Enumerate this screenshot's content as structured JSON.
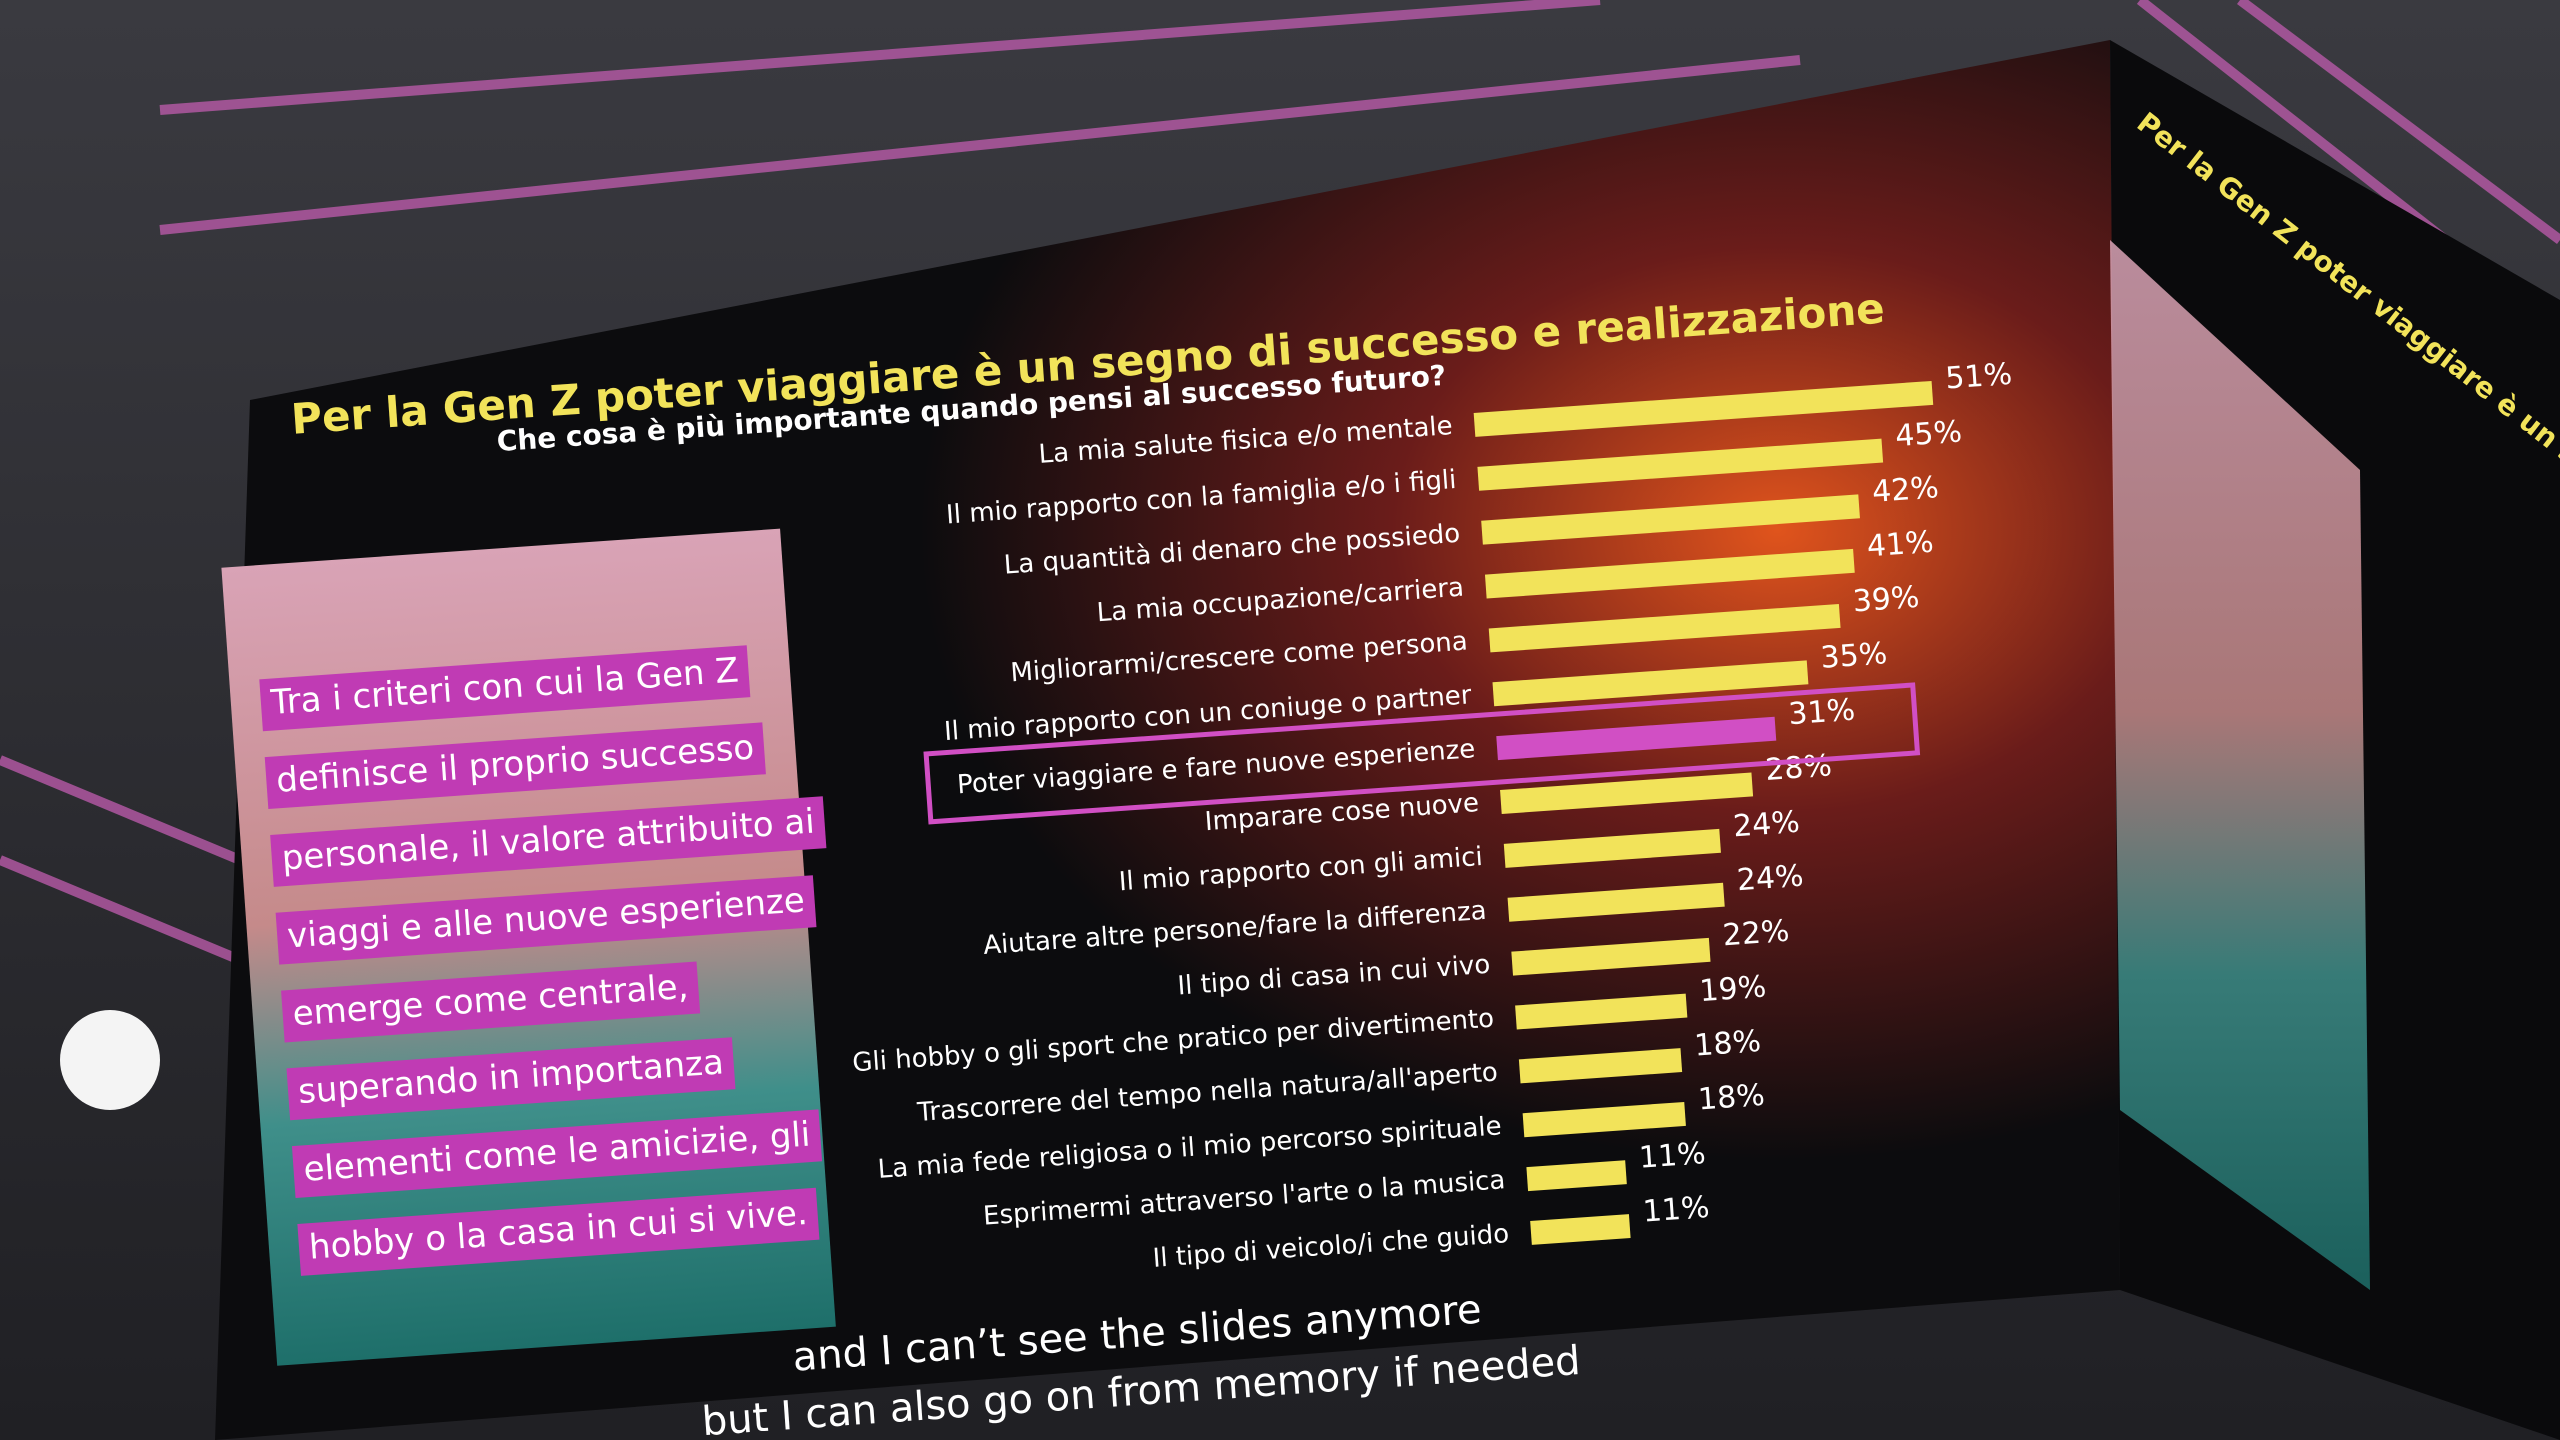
{
  "chart_data": {
    "type": "bar",
    "horizontal": true,
    "title": "Per la Gen Z poter viaggiare è un segno di successo e realizzazione",
    "subtitle": "Che cosa è più importante quando pensi al successo futuro?",
    "categories": [
      "La mia salute fisica e/o mentale",
      "Il mio rapporto con la famiglia e/o i figli",
      "La quantità di denaro che possiedo",
      "La mia occupazione/carriera",
      "Migliorarmi/crescere come persona",
      "Il mio rapporto con un coniuge o partner",
      "Poter viaggiare e fare nuove esperienze",
      "Imparare cose nuove",
      "Il mio rapporto con gli amici",
      "Aiutare altre persone/fare la differenza",
      "Il tipo di casa in cui vivo",
      "Gli hobby o gli sport che pratico per divertimento",
      "Trascorrere del tempo nella natura/all'aperto",
      "La mia fede religiosa o il mio percorso spirituale",
      "Esprimermi attraverso l'arte o la musica",
      "Il tipo di veicolo/i che guido"
    ],
    "values": [
      51,
      45,
      42,
      41,
      39,
      35,
      31,
      28,
      24,
      24,
      22,
      19,
      18,
      18,
      11,
      11
    ],
    "value_labels": [
      "51%",
      "45%",
      "42%",
      "41%",
      "39%",
      "35%",
      "31%",
      "28%",
      "24%",
      "24%",
      "22%",
      "19%",
      "18%",
      "18%",
      "11%",
      "11%"
    ],
    "colors": [
      "#f2e35a",
      "#f2e35a",
      "#f2e35a",
      "#f2e35a",
      "#f2e35a",
      "#f2e35a",
      "#d14fc4",
      "#f2e35a",
      "#f2e35a",
      "#f2e35a",
      "#f2e35a",
      "#f2e35a",
      "#f2e35a",
      "#f2e35a",
      "#f2e35a",
      "#f2e35a"
    ]
  },
  "panel_text": [
    "Tra i criteri con cui la Gen Z",
    "definisce il proprio successo",
    "personale, il valore attribuito ai",
    "viaggi e alle nuove esperienze",
    "emerge come centrale,",
    "superando in importanza",
    "elementi come le amicizie, gli",
    "hobby o la casa in cui si vive."
  ],
  "captions": [
    "and I can’t see the slides anymore",
    "but I can also go on from memory if needed"
  ]
}
